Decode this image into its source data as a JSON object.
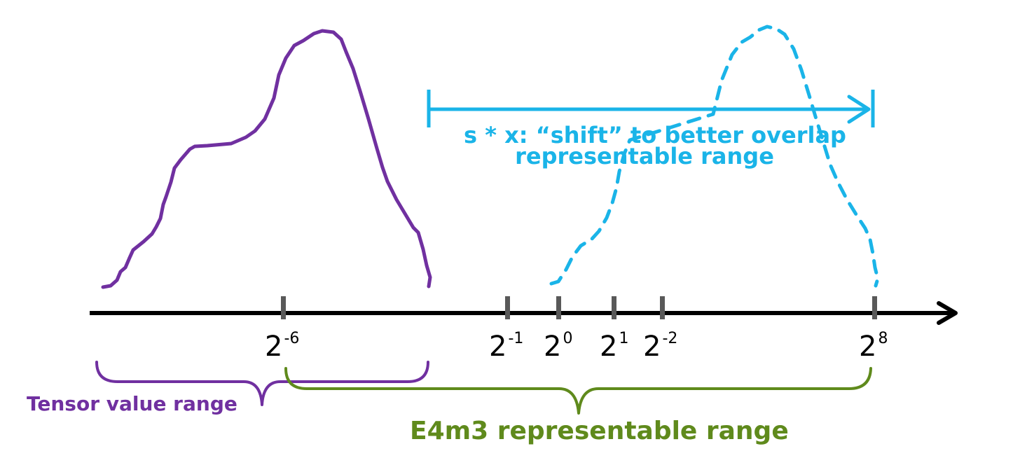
{
  "colors": {
    "tensor": "#7030a0",
    "shifted": "#1ab4e8",
    "e4m3": "#5f8a1c",
    "axis": "#000000",
    "tick": "#595959"
  },
  "axis": {
    "ticks": [
      {
        "base": "2",
        "exp": "-6"
      },
      {
        "base": "2",
        "exp": "-1"
      },
      {
        "base": "2",
        "exp": "0"
      },
      {
        "base": "2",
        "exp": "1"
      },
      {
        "base": "2",
        "exp": "-2"
      },
      {
        "base": "2",
        "exp": "8"
      }
    ]
  },
  "shift": {
    "line1": "s * x: “shift” to better overlap",
    "line2": "representable range"
  },
  "ranges": {
    "tensor_label": "Tensor value range",
    "e4m3_label": "E4m3 representable range"
  }
}
